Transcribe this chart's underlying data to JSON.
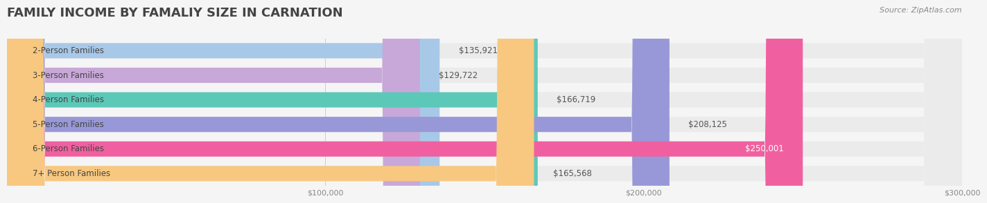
{
  "title": "FAMILY INCOME BY FAMALIY SIZE IN CARNATION",
  "source": "Source: ZipAtlas.com",
  "categories": [
    "2-Person Families",
    "3-Person Families",
    "4-Person Families",
    "5-Person Families",
    "6-Person Families",
    "7+ Person Families"
  ],
  "values": [
    135921,
    129722,
    166719,
    208125,
    250001,
    165568
  ],
  "bar_colors": [
    "#a8c8e8",
    "#c8a8d8",
    "#5cc8b8",
    "#9898d8",
    "#f060a0",
    "#f8c880"
  ],
  "label_colors": [
    "#888888",
    "#888888",
    "#888888",
    "#888888",
    "#ffffff",
    "#888888"
  ],
  "value_labels": [
    "$135,921",
    "$129,722",
    "$166,719",
    "$208,125",
    "$250,001",
    "$165,568"
  ],
  "xlim": [
    0,
    300000
  ],
  "xticks": [
    0,
    100000,
    200000,
    300000
  ],
  "xticklabels": [
    "",
    "$100,000",
    "$200,000",
    "$300,000"
  ],
  "background_color": "#f5f5f5",
  "bar_background_color": "#ebebeb",
  "title_fontsize": 13,
  "label_fontsize": 8.5,
  "value_fontsize": 8.5,
  "tick_fontsize": 8,
  "source_fontsize": 8
}
